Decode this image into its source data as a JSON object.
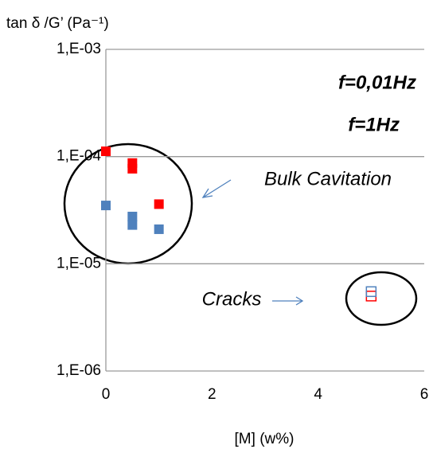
{
  "chart_data": {
    "type": "scatter",
    "y_label": "tan δ /G’ (Pa⁻¹)",
    "x_label": "[M] (w%)",
    "annotations": [
      "Bulk Cavitation",
      "Cracks"
    ],
    "series": [
      {
        "name": "f=0,01Hz",
        "color": "#ff0000",
        "x": [
          0,
          0.5,
          0.5,
          1,
          5
        ],
        "values": [
          0.000112,
          8.7e-05,
          7.7e-05,
          3.6e-05,
          5e-06
        ],
        "filled": [
          true,
          true,
          true,
          true,
          false
        ]
      },
      {
        "name": "f=1Hz",
        "color": "#4f81bd",
        "x": [
          0,
          0.5,
          0.5,
          1,
          5
        ],
        "values": [
          3.5e-05,
          2.76e-05,
          2.3e-05,
          2.1e-05,
          5.5e-06
        ],
        "filled": [
          true,
          true,
          true,
          true,
          false
        ]
      }
    ],
    "xlim": [
      0,
      6
    ],
    "xticks": [
      0,
      2,
      4,
      6
    ],
    "ylim": [
      1e-06,
      0.001
    ],
    "log_y": true,
    "yticks": [
      {
        "value": 0.001,
        "label": "1,E-03"
      },
      {
        "value": 0.0001,
        "label": "1,E-04"
      },
      {
        "value": 1e-05,
        "label": "1,E-05"
      },
      {
        "value": 1e-06,
        "label": "1,E-06"
      }
    ],
    "grid": true
  }
}
